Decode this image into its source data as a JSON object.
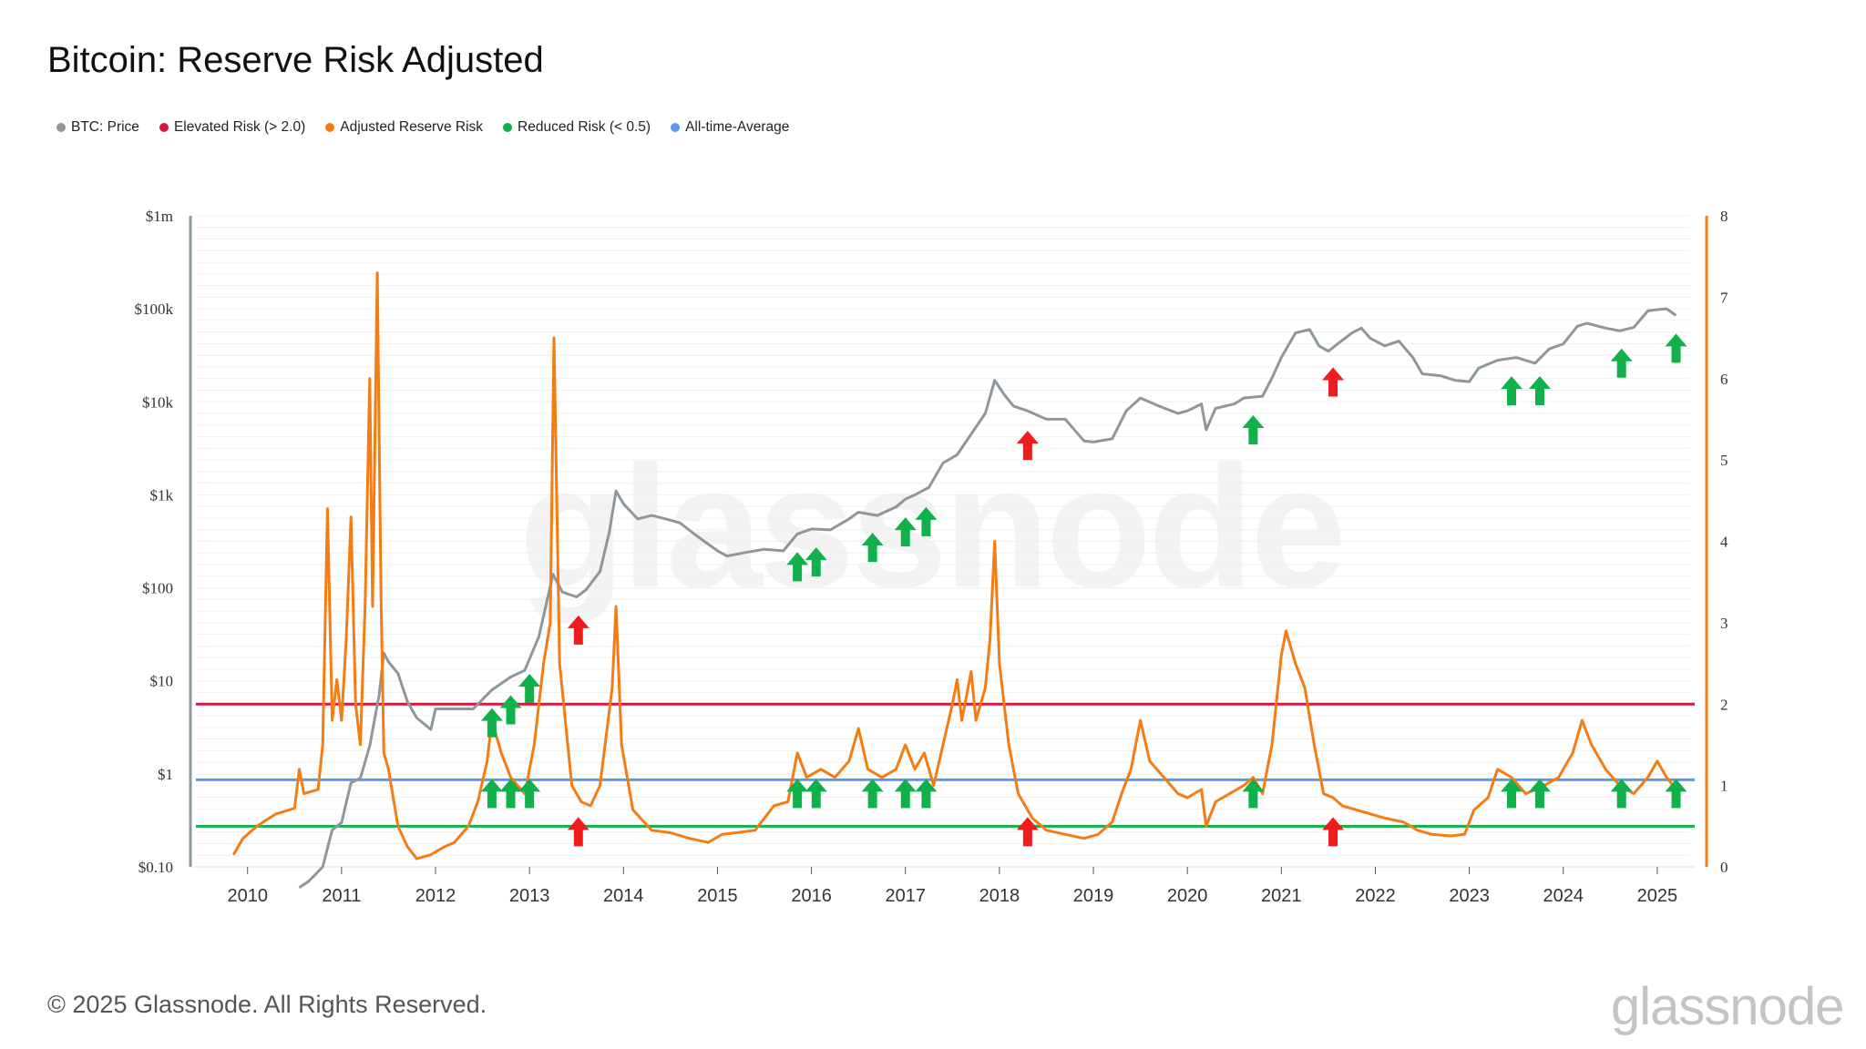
{
  "title": "Bitcoin: Reserve Risk Adjusted",
  "footer": "© 2025 Glassnode. All Rights Reserved.",
  "brand": "glassnode",
  "watermark": "glassnode",
  "legend": [
    {
      "label": "BTC: Price",
      "color": "#8e979c"
    },
    {
      "label": "Elevated Risk (> 2.0)",
      "color": "#d6173e"
    },
    {
      "label": "Adjusted Reserve Risk",
      "color": "#f57c13"
    },
    {
      "label": "Reduced Risk (< 0.5)",
      "color": "#10b14a"
    },
    {
      "label": "All-time-Average",
      "color": "#5a9be8"
    }
  ],
  "chart_data": {
    "type": "line",
    "x_ticks": [
      "2010",
      "2011",
      "2012",
      "2013",
      "2014",
      "2015",
      "2016",
      "2017",
      "2018",
      "2019",
      "2020",
      "2021",
      "2022",
      "2023",
      "2024",
      "2025"
    ],
    "y_left": {
      "scale": "log",
      "ticks": [
        "$0.10",
        "$1",
        "$10",
        "$100",
        "$1k",
        "$10k",
        "$100k",
        "$1m"
      ],
      "range": [
        0.1,
        1000000
      ]
    },
    "y_right": {
      "scale": "linear",
      "ticks": [
        "0",
        "1",
        "2",
        "3",
        "4",
        "5",
        "6",
        "7",
        "8"
      ],
      "range": [
        0,
        8
      ]
    },
    "reference_lines": [
      {
        "name": "Elevated Risk (> 2.0)",
        "value": 2.0,
        "color": "#d6173e"
      },
      {
        "name": "All-time-Average",
        "value": 1.07,
        "color": "#5a9be8"
      },
      {
        "name": "Reduced Risk (< 0.5)",
        "value": 0.5,
        "color": "#10b14a"
      }
    ],
    "series": [
      {
        "name": "BTC: Price",
        "axis": "left",
        "color": "#8e979c",
        "points": [
          [
            2010.55,
            0.06
          ],
          [
            2010.65,
            0.07
          ],
          [
            2010.8,
            0.1
          ],
          [
            2010.9,
            0.25
          ],
          [
            2011.0,
            0.3
          ],
          [
            2011.1,
            0.8
          ],
          [
            2011.2,
            0.9
          ],
          [
            2011.3,
            2
          ],
          [
            2011.4,
            7
          ],
          [
            2011.45,
            20
          ],
          [
            2011.5,
            16
          ],
          [
            2011.6,
            12
          ],
          [
            2011.7,
            6
          ],
          [
            2011.8,
            4
          ],
          [
            2011.95,
            3
          ],
          [
            2012.0,
            5
          ],
          [
            2012.2,
            5
          ],
          [
            2012.4,
            5
          ],
          [
            2012.6,
            8
          ],
          [
            2012.8,
            11
          ],
          [
            2012.95,
            13
          ],
          [
            2013.1,
            30
          ],
          [
            2013.25,
            140
          ],
          [
            2013.35,
            90
          ],
          [
            2013.5,
            80
          ],
          [
            2013.6,
            95
          ],
          [
            2013.75,
            150
          ],
          [
            2013.85,
            400
          ],
          [
            2013.92,
            1100
          ],
          [
            2014.0,
            800
          ],
          [
            2014.15,
            550
          ],
          [
            2014.3,
            600
          ],
          [
            2014.45,
            550
          ],
          [
            2014.6,
            500
          ],
          [
            2014.8,
            350
          ],
          [
            2015.0,
            250
          ],
          [
            2015.1,
            220
          ],
          [
            2015.3,
            240
          ],
          [
            2015.5,
            260
          ],
          [
            2015.7,
            250
          ],
          [
            2015.85,
            380
          ],
          [
            2016.0,
            430
          ],
          [
            2016.2,
            420
          ],
          [
            2016.4,
            550
          ],
          [
            2016.5,
            650
          ],
          [
            2016.7,
            600
          ],
          [
            2016.9,
            740
          ],
          [
            2017.0,
            900
          ],
          [
            2017.1,
            1000
          ],
          [
            2017.25,
            1200
          ],
          [
            2017.4,
            2200
          ],
          [
            2017.55,
            2700
          ],
          [
            2017.7,
            4500
          ],
          [
            2017.85,
            7500
          ],
          [
            2017.95,
            17000
          ],
          [
            2018.05,
            12000
          ],
          [
            2018.15,
            9000
          ],
          [
            2018.3,
            8000
          ],
          [
            2018.5,
            6500
          ],
          [
            2018.7,
            6500
          ],
          [
            2018.9,
            3800
          ],
          [
            2019.0,
            3700
          ],
          [
            2019.2,
            4000
          ],
          [
            2019.35,
            8000
          ],
          [
            2019.5,
            11000
          ],
          [
            2019.7,
            9000
          ],
          [
            2019.9,
            7500
          ],
          [
            2020.0,
            8000
          ],
          [
            2020.15,
            9500
          ],
          [
            2020.2,
            5000
          ],
          [
            2020.3,
            8500
          ],
          [
            2020.5,
            9500
          ],
          [
            2020.6,
            11000
          ],
          [
            2020.8,
            11500
          ],
          [
            2020.9,
            18000
          ],
          [
            2021.0,
            30000
          ],
          [
            2021.15,
            55000
          ],
          [
            2021.3,
            60000
          ],
          [
            2021.4,
            40000
          ],
          [
            2021.5,
            35000
          ],
          [
            2021.6,
            42000
          ],
          [
            2021.75,
            55000
          ],
          [
            2021.85,
            62000
          ],
          [
            2021.95,
            48000
          ],
          [
            2022.1,
            40000
          ],
          [
            2022.25,
            45000
          ],
          [
            2022.4,
            30000
          ],
          [
            2022.5,
            20000
          ],
          [
            2022.7,
            19000
          ],
          [
            2022.85,
            17000
          ],
          [
            2023.0,
            16500
          ],
          [
            2023.1,
            23000
          ],
          [
            2023.3,
            28000
          ],
          [
            2023.5,
            30000
          ],
          [
            2023.7,
            26000
          ],
          [
            2023.85,
            37000
          ],
          [
            2024.0,
            42000
          ],
          [
            2024.15,
            65000
          ],
          [
            2024.25,
            70000
          ],
          [
            2024.45,
            62000
          ],
          [
            2024.6,
            58000
          ],
          [
            2024.75,
            63000
          ],
          [
            2024.9,
            95000
          ],
          [
            2025.0,
            98000
          ],
          [
            2025.1,
            100000
          ],
          [
            2025.2,
            85000
          ]
        ]
      },
      {
        "name": "Adjusted Reserve Risk",
        "axis": "right",
        "color": "#f57c13",
        "points": [
          [
            2009.85,
            0.15
          ],
          [
            2009.95,
            0.35
          ],
          [
            2010.1,
            0.5
          ],
          [
            2010.3,
            0.65
          ],
          [
            2010.5,
            0.72
          ],
          [
            2010.55,
            1.2
          ],
          [
            2010.6,
            0.9
          ],
          [
            2010.75,
            0.95
          ],
          [
            2010.8,
            1.5
          ],
          [
            2010.85,
            4.4
          ],
          [
            2010.9,
            1.8
          ],
          [
            2010.95,
            2.3
          ],
          [
            2011.0,
            1.8
          ],
          [
            2011.05,
            2.8
          ],
          [
            2011.1,
            4.3
          ],
          [
            2011.15,
            2.0
          ],
          [
            2011.2,
            1.5
          ],
          [
            2011.25,
            3.2
          ],
          [
            2011.3,
            6.0
          ],
          [
            2011.33,
            3.2
          ],
          [
            2011.38,
            7.3
          ],
          [
            2011.42,
            3.3
          ],
          [
            2011.45,
            1.4
          ],
          [
            2011.5,
            1.2
          ],
          [
            2011.6,
            0.5
          ],
          [
            2011.7,
            0.25
          ],
          [
            2011.8,
            0.1
          ],
          [
            2011.95,
            0.15
          ],
          [
            2012.1,
            0.25
          ],
          [
            2012.2,
            0.3
          ],
          [
            2012.35,
            0.5
          ],
          [
            2012.45,
            0.8
          ],
          [
            2012.55,
            1.3
          ],
          [
            2012.6,
            1.8
          ],
          [
            2012.7,
            1.4
          ],
          [
            2012.8,
            1.1
          ],
          [
            2012.95,
            0.9
          ],
          [
            2013.05,
            1.5
          ],
          [
            2013.15,
            2.5
          ],
          [
            2013.22,
            3.0
          ],
          [
            2013.26,
            6.5
          ],
          [
            2013.32,
            2.5
          ],
          [
            2013.45,
            1.0
          ],
          [
            2013.55,
            0.8
          ],
          [
            2013.65,
            0.75
          ],
          [
            2013.75,
            1.0
          ],
          [
            2013.88,
            2.2
          ],
          [
            2013.92,
            3.2
          ],
          [
            2013.98,
            1.5
          ],
          [
            2014.1,
            0.7
          ],
          [
            2014.3,
            0.45
          ],
          [
            2014.5,
            0.42
          ],
          [
            2014.7,
            0.35
          ],
          [
            2014.9,
            0.3
          ],
          [
            2015.05,
            0.4
          ],
          [
            2015.2,
            0.42
          ],
          [
            2015.4,
            0.45
          ],
          [
            2015.5,
            0.6
          ],
          [
            2015.6,
            0.75
          ],
          [
            2015.75,
            0.8
          ],
          [
            2015.85,
            1.4
          ],
          [
            2015.95,
            1.1
          ],
          [
            2016.1,
            1.2
          ],
          [
            2016.25,
            1.1
          ],
          [
            2016.4,
            1.3
          ],
          [
            2016.5,
            1.7
          ],
          [
            2016.6,
            1.2
          ],
          [
            2016.75,
            1.1
          ],
          [
            2016.9,
            1.2
          ],
          [
            2017.0,
            1.5
          ],
          [
            2017.1,
            1.2
          ],
          [
            2017.2,
            1.4
          ],
          [
            2017.3,
            1.0
          ],
          [
            2017.4,
            1.5
          ],
          [
            2017.5,
            2.0
          ],
          [
            2017.55,
            2.3
          ],
          [
            2017.6,
            1.8
          ],
          [
            2017.7,
            2.4
          ],
          [
            2017.75,
            1.8
          ],
          [
            2017.85,
            2.2
          ],
          [
            2017.9,
            2.8
          ],
          [
            2017.95,
            4.0
          ],
          [
            2018.0,
            2.5
          ],
          [
            2018.1,
            1.5
          ],
          [
            2018.2,
            0.9
          ],
          [
            2018.35,
            0.6
          ],
          [
            2018.5,
            0.45
          ],
          [
            2018.7,
            0.4
          ],
          [
            2018.9,
            0.35
          ],
          [
            2019.05,
            0.4
          ],
          [
            2019.2,
            0.55
          ],
          [
            2019.3,
            0.9
          ],
          [
            2019.4,
            1.2
          ],
          [
            2019.5,
            1.8
          ],
          [
            2019.6,
            1.3
          ],
          [
            2019.75,
            1.1
          ],
          [
            2019.9,
            0.9
          ],
          [
            2020.0,
            0.85
          ],
          [
            2020.15,
            0.95
          ],
          [
            2020.2,
            0.5
          ],
          [
            2020.3,
            0.8
          ],
          [
            2020.45,
            0.9
          ],
          [
            2020.6,
            1.0
          ],
          [
            2020.7,
            1.1
          ],
          [
            2020.8,
            0.9
          ],
          [
            2020.9,
            1.5
          ],
          [
            2021.0,
            2.6
          ],
          [
            2021.05,
            2.9
          ],
          [
            2021.15,
            2.5
          ],
          [
            2021.25,
            2.2
          ],
          [
            2021.35,
            1.5
          ],
          [
            2021.45,
            0.9
          ],
          [
            2021.55,
            0.85
          ],
          [
            2021.65,
            0.75
          ],
          [
            2021.8,
            0.7
          ],
          [
            2021.95,
            0.65
          ],
          [
            2022.1,
            0.6
          ],
          [
            2022.3,
            0.55
          ],
          [
            2022.45,
            0.45
          ],
          [
            2022.6,
            0.4
          ],
          [
            2022.8,
            0.38
          ],
          [
            2022.95,
            0.4
          ],
          [
            2023.05,
            0.7
          ],
          [
            2023.2,
            0.85
          ],
          [
            2023.3,
            1.2
          ],
          [
            2023.45,
            1.1
          ],
          [
            2023.6,
            0.9
          ],
          [
            2023.8,
            1.0
          ],
          [
            2023.95,
            1.1
          ],
          [
            2024.1,
            1.4
          ],
          [
            2024.2,
            1.8
          ],
          [
            2024.3,
            1.5
          ],
          [
            2024.45,
            1.2
          ],
          [
            2024.6,
            1.0
          ],
          [
            2024.75,
            0.9
          ],
          [
            2024.9,
            1.1
          ],
          [
            2025.0,
            1.3
          ],
          [
            2025.1,
            1.1
          ],
          [
            2025.2,
            0.95
          ]
        ]
      }
    ],
    "annotations": {
      "green_arrows": [
        {
          "x": 2012.6,
          "on": "price"
        },
        {
          "x": 2012.8,
          "on": "price"
        },
        {
          "x": 2013.0,
          "on": "price"
        },
        {
          "x": 2015.85,
          "on": "price"
        },
        {
          "x": 2016.05,
          "on": "price"
        },
        {
          "x": 2016.65,
          "on": "price"
        },
        {
          "x": 2017.0,
          "on": "price"
        },
        {
          "x": 2017.22,
          "on": "price"
        },
        {
          "x": 2020.7,
          "on": "price"
        },
        {
          "x": 2023.45,
          "on": "price"
        },
        {
          "x": 2023.75,
          "on": "price"
        },
        {
          "x": 2024.62,
          "on": "price"
        },
        {
          "x": 2025.2,
          "on": "price"
        },
        {
          "x": 2012.6,
          "on": "risk"
        },
        {
          "x": 2012.8,
          "on": "risk"
        },
        {
          "x": 2013.0,
          "on": "risk"
        },
        {
          "x": 2015.85,
          "on": "risk"
        },
        {
          "x": 2016.05,
          "on": "risk"
        },
        {
          "x": 2016.65,
          "on": "risk"
        },
        {
          "x": 2017.0,
          "on": "risk"
        },
        {
          "x": 2017.22,
          "on": "risk"
        },
        {
          "x": 2020.7,
          "on": "risk"
        },
        {
          "x": 2023.45,
          "on": "risk"
        },
        {
          "x": 2023.75,
          "on": "risk"
        },
        {
          "x": 2024.62,
          "on": "risk"
        },
        {
          "x": 2025.2,
          "on": "risk"
        }
      ],
      "red_arrows": [
        {
          "x": 2013.52,
          "on": "price"
        },
        {
          "x": 2018.3,
          "on": "price"
        },
        {
          "x": 2021.55,
          "on": "price"
        },
        {
          "x": 2013.52,
          "on": "risk"
        },
        {
          "x": 2018.3,
          "on": "risk"
        },
        {
          "x": 2021.55,
          "on": "risk"
        }
      ]
    }
  }
}
